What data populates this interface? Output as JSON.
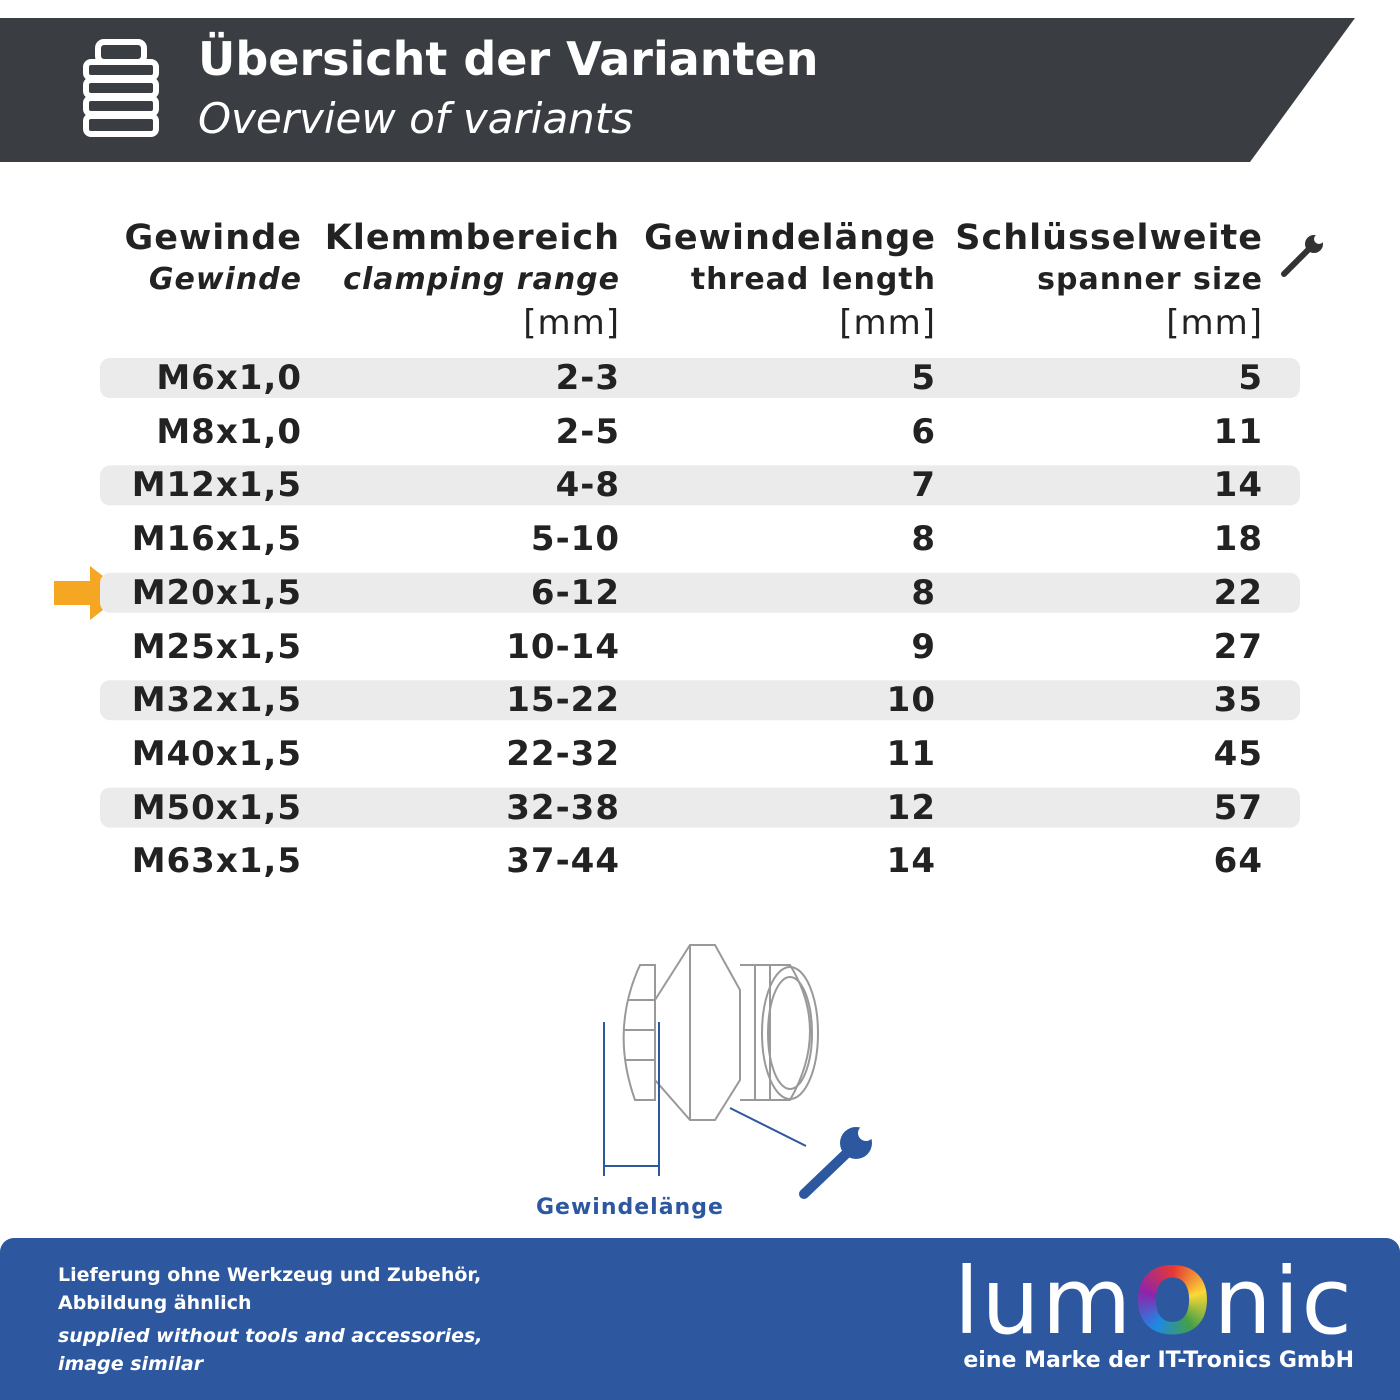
{
  "header": {
    "title": "Übersicht der Varianten",
    "subtitle": "Overview of variants"
  },
  "table": {
    "headers": [
      [
        "Gewinde",
        "Gewinde"
      ],
      [
        "Klemmbereich",
        "clamping range",
        "[mm]"
      ],
      [
        "Gewindelänge",
        "thread length",
        "[mm]"
      ],
      [
        "Schlüsselweite",
        "spanner size",
        "[mm]"
      ]
    ],
    "rows": [
      [
        "M6x1,0",
        "2-3",
        "5",
        "5"
      ],
      [
        "M8x1,0",
        "2-5",
        "6",
        "11"
      ],
      [
        "M12x1,5",
        "4-8",
        "7",
        "14"
      ],
      [
        "M16x1,5",
        "5-10",
        "8",
        "18"
      ],
      [
        "M20x1,5",
        "6-12",
        "8",
        "22"
      ],
      [
        "M25x1,5",
        "10-14",
        "9",
        "27"
      ],
      [
        "M32x1,5",
        "15-22",
        "10",
        "35"
      ],
      [
        "M40x1,5",
        "22-32",
        "11",
        "45"
      ],
      [
        "M50x1,5",
        "32-38",
        "12",
        "57"
      ],
      [
        "M63x1,5",
        "37-44",
        "14",
        "64"
      ]
    ]
  },
  "diagram": {
    "label": "Gewindelänge"
  },
  "footer": {
    "notes_de": [
      "Lieferung ohne Werkzeug und Zubehör,",
      "Abbildung ähnlich"
    ],
    "notes_en": [
      "supplied without tools and accessories,",
      "image similar"
    ],
    "logo": [
      "lum",
      "O",
      "nic"
    ],
    "tagline": "eine Marke der IT-Tronics GmbH"
  }
}
